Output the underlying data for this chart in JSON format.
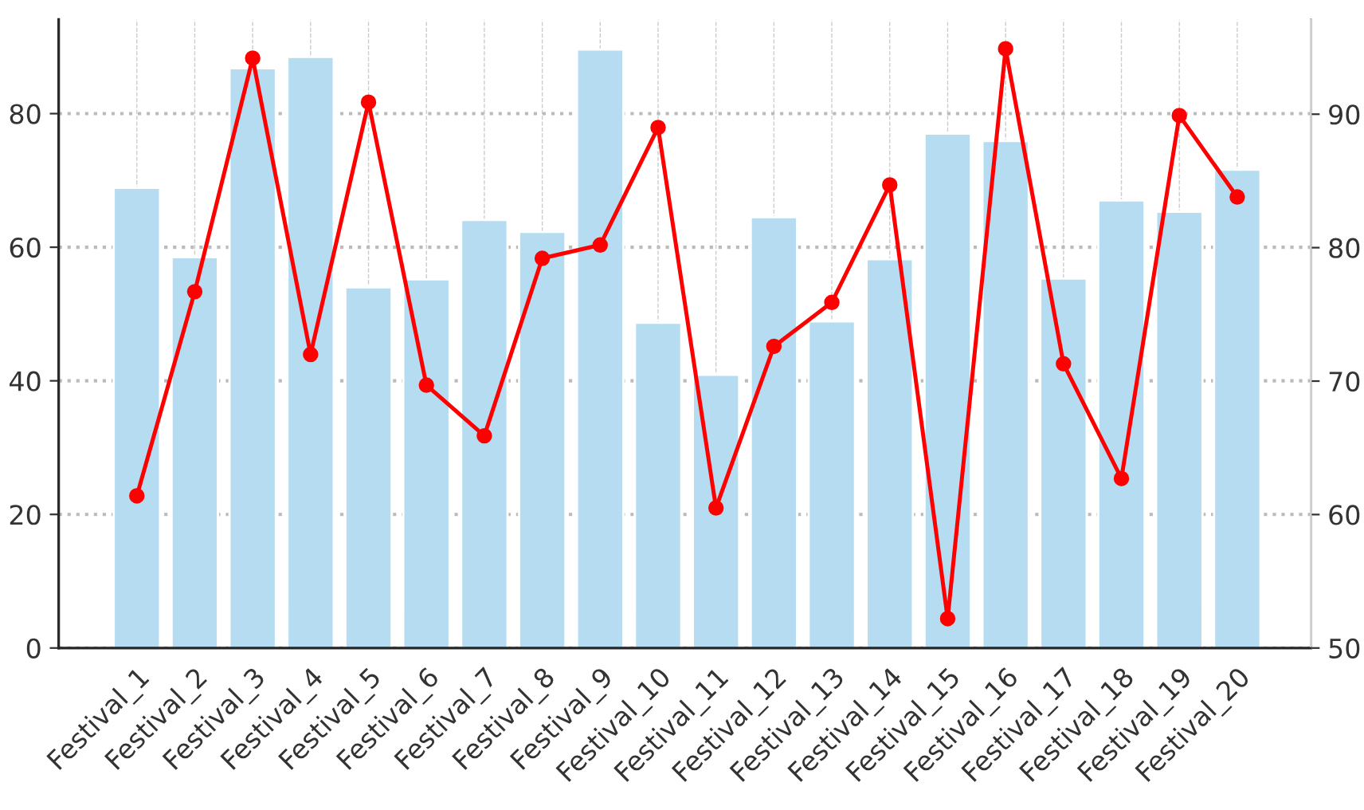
{
  "chart_data": {
    "type": "bar",
    "categories": [
      "Festival_1",
      "Festival_2",
      "Festival_3",
      "Festival_4",
      "Festival_5",
      "Festival_6",
      "Festival_7",
      "Festival_8",
      "Festival_9",
      "Festival_10",
      "Festival_11",
      "Festival_12",
      "Festival_13",
      "Festival_14",
      "Festival_15",
      "Festival_16",
      "Festival_17",
      "Festival_18",
      "Festival_19",
      "Festival_20"
    ],
    "series": [
      {
        "color": "#b5dcf0",
        "values": [
          68.9,
          58.5,
          86.8,
          88.5,
          54.0,
          55.2,
          64.1,
          62.3,
          89.6,
          48.7,
          40.9,
          64.5,
          48.9,
          58.2,
          77.0,
          75.9,
          55.3,
          67.0,
          65.3,
          71.6
        ]
      },
      {
        "type": "line",
        "axis": "y2",
        "color": "#ff0000",
        "values": [
          61.4,
          76.7,
          94.2,
          72.0,
          90.9,
          69.7,
          65.9,
          79.2,
          80.2,
          89.0,
          60.5,
          72.6,
          75.9,
          84.7,
          52.2,
          94.9,
          71.3,
          62.7,
          89.9,
          83.8
        ]
      }
    ],
    "ylim": [
      0,
      94.1
    ],
    "yticks": [
      0,
      20,
      40,
      60,
      80
    ],
    "y2lim": [
      50,
      97.1
    ],
    "y2ticks": [
      50,
      60,
      70,
      80,
      90
    ],
    "grid": true,
    "marker": "circle",
    "line_style": "solid",
    "legend": false
  }
}
